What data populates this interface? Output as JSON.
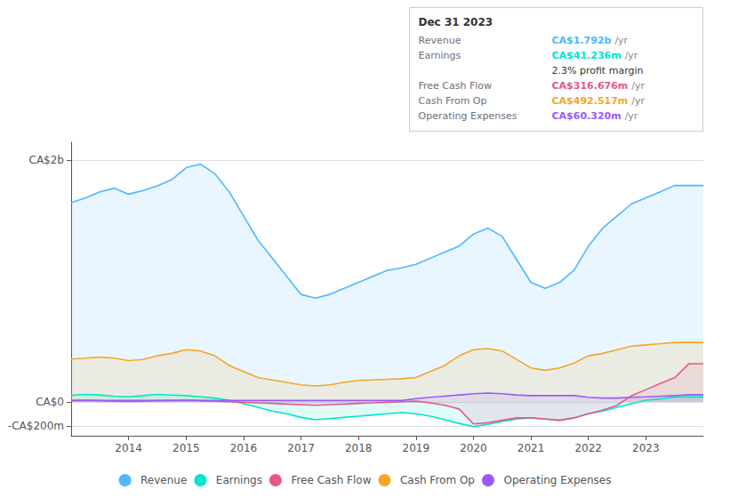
{
  "chart_data": {
    "type": "area",
    "x": [
      2013.0,
      2013.25,
      2013.5,
      2013.75,
      2014.0,
      2014.25,
      2014.5,
      2014.75,
      2015.0,
      2015.25,
      2015.5,
      2015.75,
      2016.0,
      2016.25,
      2016.5,
      2016.75,
      2017.0,
      2017.25,
      2017.5,
      2017.75,
      2018.0,
      2018.25,
      2018.5,
      2018.75,
      2019.0,
      2019.25,
      2019.5,
      2019.75,
      2020.0,
      2020.25,
      2020.5,
      2020.75,
      2021.0,
      2021.25,
      2021.5,
      2021.75,
      2022.0,
      2022.25,
      2022.5,
      2022.75,
      2023.0,
      2023.25,
      2023.5,
      2023.75,
      2024.0
    ],
    "xlim": [
      2013,
      2024
    ],
    "xticks": [
      2014,
      2015,
      2016,
      2017,
      2018,
      2019,
      2020,
      2021,
      2022,
      2023
    ],
    "ylim": [
      -280,
      2150
    ],
    "yticks": [
      {
        "value": -200,
        "label": "-CA$200m"
      },
      {
        "value": 0,
        "label": "CA$0"
      },
      {
        "value": 2000,
        "label": "CA$2b"
      }
    ],
    "grid": true,
    "legend": "bottom",
    "series": [
      {
        "name": "Revenue",
        "color": "#4cb8ff",
        "values": [
          1650,
          1690,
          1740,
          1770,
          1720,
          1750,
          1790,
          1840,
          1940,
          1970,
          1890,
          1740,
          1540,
          1340,
          1190,
          1040,
          890,
          860,
          890,
          940,
          990,
          1040,
          1090,
          1110,
          1140,
          1190,
          1240,
          1290,
          1390,
          1440,
          1370,
          1180,
          990,
          940,
          990,
          1090,
          1290,
          1440,
          1540,
          1640,
          1690,
          1740,
          1792,
          1792,
          1792
        ]
      },
      {
        "name": "Earnings",
        "color": "#00e5cc",
        "values": [
          55,
          62,
          58,
          48,
          42,
          52,
          62,
          57,
          52,
          42,
          32,
          15,
          -15,
          -45,
          -75,
          -98,
          -128,
          -148,
          -138,
          -128,
          -118,
          -108,
          -98,
          -88,
          -98,
          -118,
          -148,
          -178,
          -205,
          -185,
          -162,
          -142,
          -132,
          -142,
          -152,
          -132,
          -98,
          -75,
          -45,
          -15,
          15,
          25,
          41,
          41,
          41
        ]
      },
      {
        "name": "Free Cash Flow",
        "color": "#e8578a",
        "values": [
          12,
          14,
          10,
          6,
          4,
          6,
          10,
          12,
          14,
          10,
          6,
          2,
          -3,
          -8,
          -12,
          -18,
          -22,
          -28,
          -22,
          -18,
          -12,
          -8,
          -3,
          2,
          6,
          -8,
          -28,
          -58,
          -182,
          -172,
          -152,
          -132,
          -132,
          -142,
          -152,
          -132,
          -98,
          -68,
          -28,
          52,
          102,
          152,
          200,
          317,
          317
        ]
      },
      {
        "name": "Cash From Op",
        "color": "#f5a623",
        "values": [
          355,
          362,
          372,
          362,
          342,
          352,
          382,
          402,
          432,
          422,
          382,
          302,
          252,
          202,
          182,
          162,
          142,
          132,
          142,
          162,
          178,
          182,
          188,
          192,
          202,
          252,
          302,
          382,
          432,
          442,
          422,
          352,
          282,
          262,
          282,
          322,
          382,
          402,
          432,
          462,
          472,
          482,
          492,
          492,
          492
        ]
      },
      {
        "name": "Operating Expenses",
        "color": "#9b59ff",
        "values": [
          12,
          12,
          12,
          12,
          12,
          12,
          12,
          12,
          12,
          12,
          12,
          12,
          12,
          12,
          12,
          12,
          12,
          12,
          12,
          12,
          12,
          12,
          12,
          12,
          28,
          38,
          48,
          58,
          68,
          73,
          68,
          58,
          52,
          52,
          52,
          52,
          38,
          32,
          32,
          38,
          42,
          48,
          52,
          60,
          60
        ]
      }
    ],
    "annotations": [
      {
        "text": "Dec 31 2023"
      },
      {
        "label": "Revenue",
        "text": "CA$1.792b",
        "suffix": "/yr",
        "color": "#4cb8ff"
      },
      {
        "label": "Earnings",
        "text": "CA$41.236m",
        "suffix": "/yr",
        "color": "#00e5cc",
        "note": "2.3% profit margin"
      },
      {
        "label": "Free Cash Flow",
        "text": "CA$316.676m",
        "suffix": "/yr",
        "color": "#e8578a"
      },
      {
        "label": "Cash From Op",
        "text": "CA$492.517m",
        "suffix": "/yr",
        "color": "#f5a623"
      },
      {
        "label": "Operating Expenses",
        "text": "CA$60.320m",
        "suffix": "/yr",
        "color": "#9b59ff"
      }
    ]
  }
}
